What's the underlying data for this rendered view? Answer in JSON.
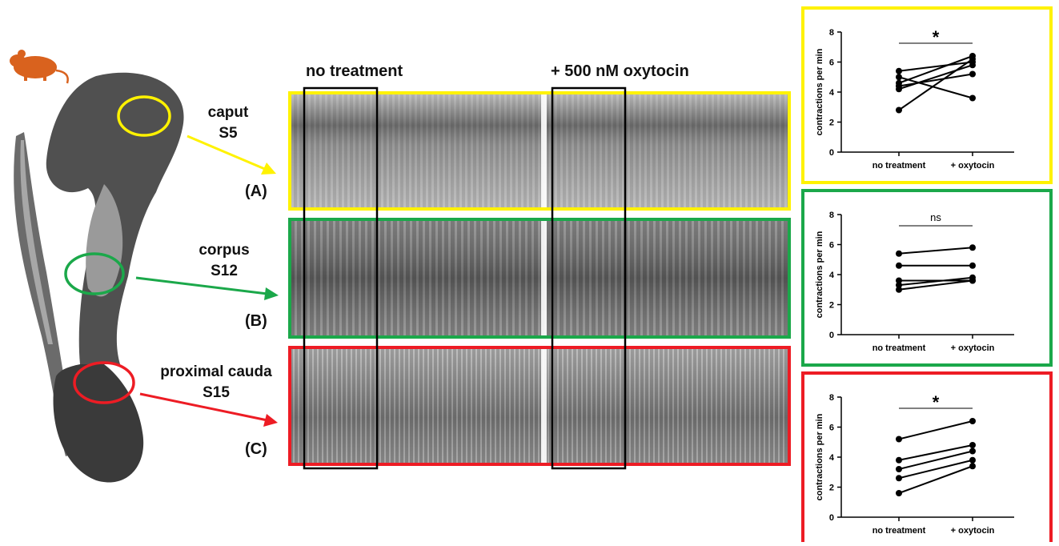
{
  "colors": {
    "caput": "#FFF200",
    "corpus": "#1BA84A",
    "cauda": "#ED1C24",
    "mouse": "#D9621E",
    "window": "#000000"
  },
  "icons": {
    "mouse": "mouse-icon"
  },
  "conditions": {
    "left": "no treatment",
    "right": "+ 500 nM oxytocin"
  },
  "regions": [
    {
      "name": "caput",
      "segment": "S5",
      "panel": "(A)"
    },
    {
      "name": "corpus",
      "segment": "S12",
      "panel": "(B)"
    },
    {
      "name": "proximal cauda",
      "segment": "S15",
      "panel": "(C)"
    }
  ],
  "chart_data": [
    {
      "type": "line",
      "region": "caput",
      "categories": [
        "no treatment",
        "+ oxytocin"
      ],
      "ylabel": "contractions per min",
      "ylim": [
        0,
        8
      ],
      "yticks": [
        0,
        2,
        4,
        6,
        8
      ],
      "significance": "*",
      "pairs": [
        [
          5.4,
          6.0
        ],
        [
          4.6,
          6.4
        ],
        [
          4.2,
          5.8
        ],
        [
          2.8,
          6.2
        ],
        [
          4.4,
          5.2
        ],
        [
          5.0,
          3.6
        ]
      ]
    },
    {
      "type": "line",
      "region": "corpus",
      "categories": [
        "no treatment",
        "+ oxytocin"
      ],
      "ylabel": "contractions per min",
      "ylim": [
        0,
        8
      ],
      "yticks": [
        0,
        2,
        4,
        6,
        8
      ],
      "significance": "ns",
      "pairs": [
        [
          5.4,
          5.8
        ],
        [
          4.6,
          4.6
        ],
        [
          3.6,
          3.6
        ],
        [
          3.3,
          3.8
        ],
        [
          3.0,
          3.6
        ]
      ]
    },
    {
      "type": "line",
      "region": "proximal cauda",
      "categories": [
        "no treatment",
        "+ oxytocin"
      ],
      "ylabel": "contractions per min",
      "ylim": [
        0,
        8
      ],
      "yticks": [
        0,
        2,
        4,
        6,
        8
      ],
      "significance": "*",
      "pairs": [
        [
          5.2,
          6.4
        ],
        [
          3.8,
          4.8
        ],
        [
          3.2,
          4.4
        ],
        [
          2.6,
          3.8
        ],
        [
          1.6,
          3.4
        ]
      ]
    }
  ]
}
